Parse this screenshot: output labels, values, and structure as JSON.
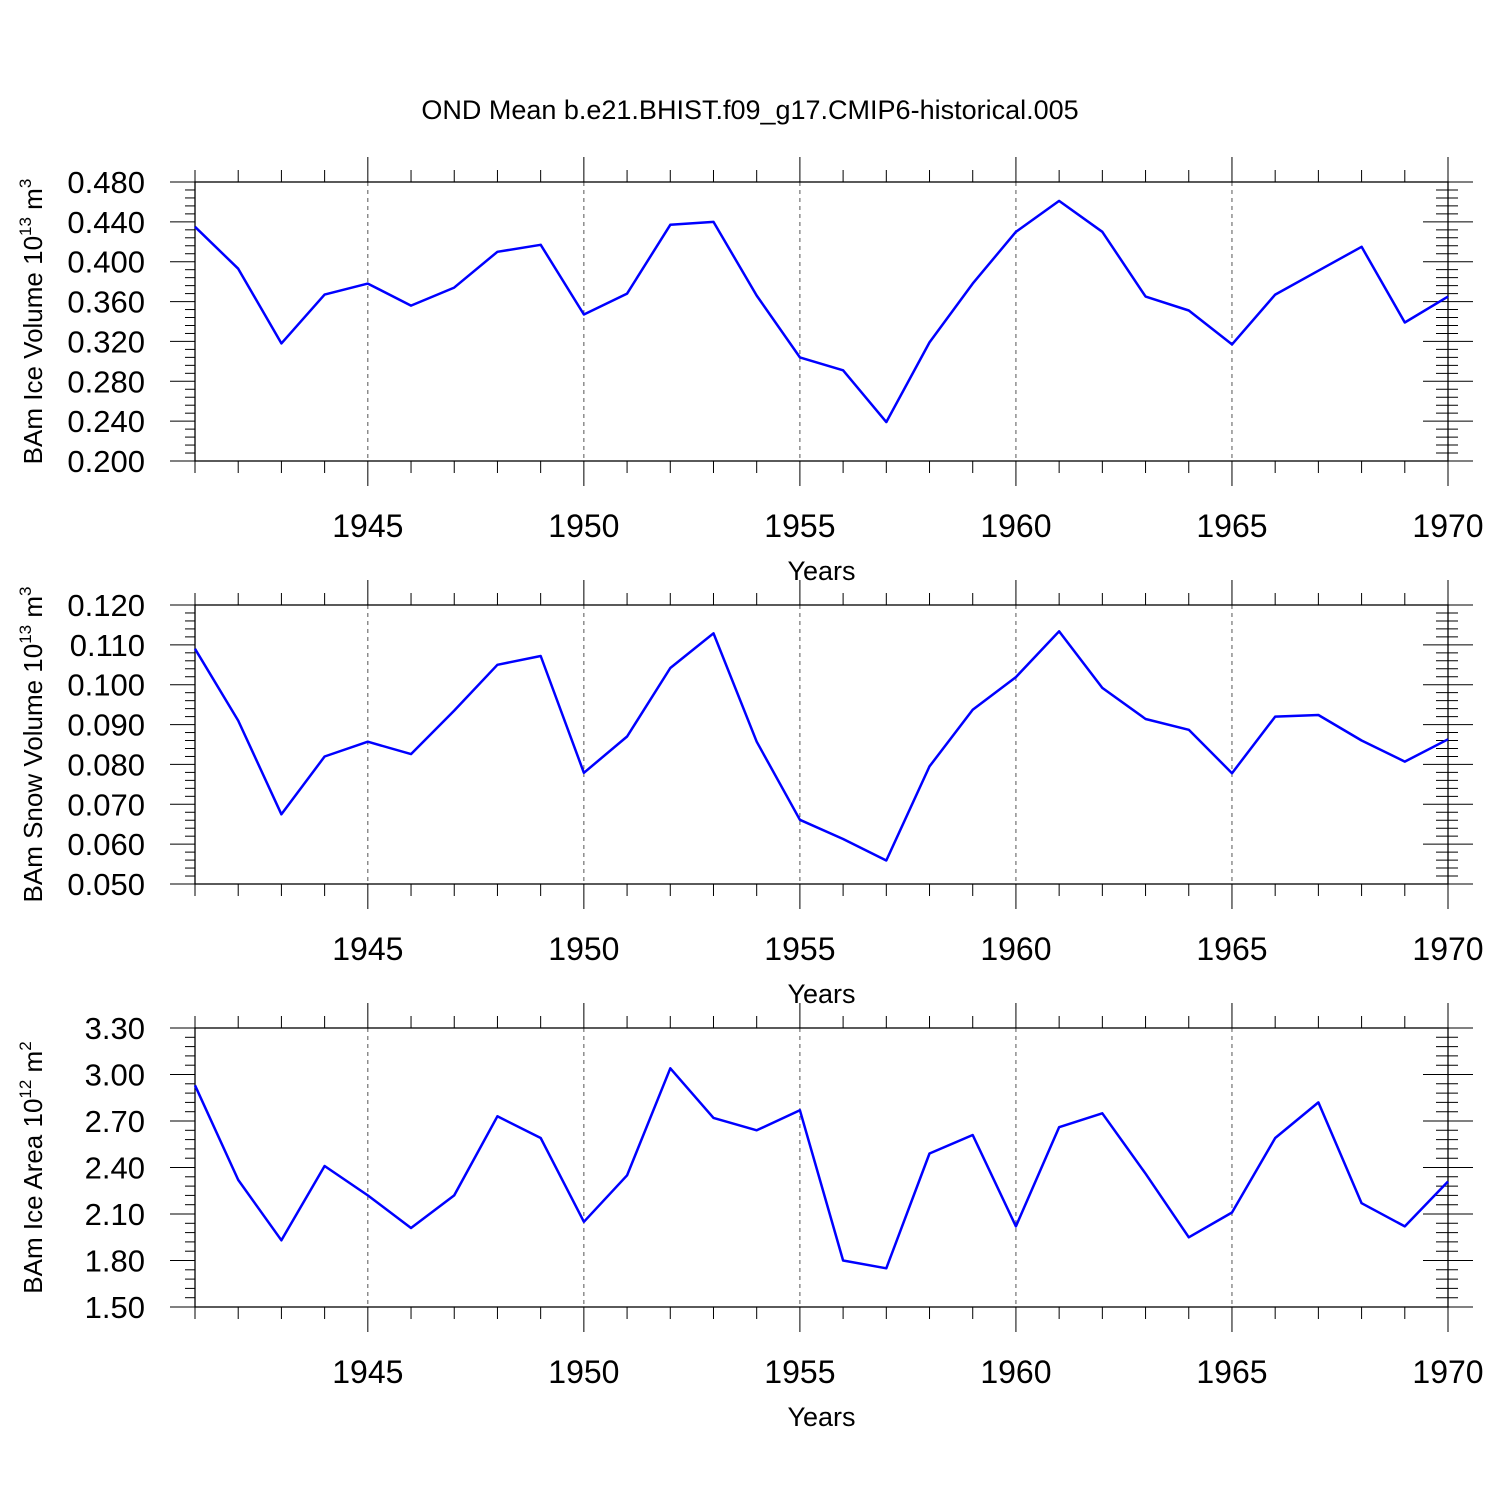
{
  "title": "OND Mean b.e21.BHIST.f09_g17.CMIP6-historical.005",
  "line_color": "#0000ff",
  "chart_data": [
    {
      "type": "line",
      "ylabel": "BAm Ice Volume 10",
      "ylabel_exp": "13",
      "ylabel_unit": " m",
      "ylabel_unit_exp": "3",
      "xlabel": "Years",
      "xlim": [
        1941,
        1970
      ],
      "ylim": [
        0.2,
        0.48
      ],
      "yticks": [
        "0.200",
        "0.240",
        "0.280",
        "0.320",
        "0.360",
        "0.400",
        "0.440",
        "0.480"
      ],
      "xticks": [
        "1945",
        "1950",
        "1955",
        "1960",
        "1965",
        "1970"
      ],
      "x": [
        1941,
        1942,
        1943,
        1944,
        1945,
        1946,
        1947,
        1948,
        1949,
        1950,
        1951,
        1952,
        1953,
        1954,
        1955,
        1956,
        1957,
        1958,
        1959,
        1960,
        1961,
        1962,
        1963,
        1964,
        1965,
        1966,
        1967,
        1968,
        1969,
        1970
      ],
      "y": [
        0.435,
        0.393,
        0.318,
        0.367,
        0.378,
        0.356,
        0.374,
        0.41,
        0.417,
        0.347,
        0.368,
        0.437,
        0.44,
        0.366,
        0.304,
        0.291,
        0.239,
        0.319,
        0.378,
        0.43,
        0.461,
        0.43,
        0.365,
        0.351,
        0.317,
        0.367,
        0.391,
        0.415,
        0.339,
        0.365
      ]
    },
    {
      "type": "line",
      "ylabel": "BAm Snow Volume 10",
      "ylabel_exp": "13",
      "ylabel_unit": " m",
      "ylabel_unit_exp": "3",
      "xlabel": "Years",
      "xlim": [
        1941,
        1970
      ],
      "ylim": [
        0.05,
        0.12
      ],
      "yticks": [
        "0.050",
        "0.060",
        "0.070",
        "0.080",
        "0.090",
        "0.100",
        "0.110",
        "0.120"
      ],
      "xticks": [
        "1945",
        "1950",
        "1955",
        "1960",
        "1965",
        "1970"
      ],
      "x": [
        1941,
        1942,
        1943,
        1944,
        1945,
        1946,
        1947,
        1948,
        1949,
        1950,
        1951,
        1952,
        1953,
        1954,
        1955,
        1956,
        1957,
        1958,
        1959,
        1960,
        1961,
        1962,
        1963,
        1964,
        1965,
        1966,
        1967,
        1968,
        1969,
        1970
      ],
      "y": [
        0.109,
        0.091,
        0.0675,
        0.082,
        0.0857,
        0.0826,
        0.0935,
        0.105,
        0.1072,
        0.0779,
        0.087,
        0.1042,
        0.1129,
        0.0857,
        0.0661,
        0.0613,
        0.0559,
        0.0795,
        0.0937,
        0.1019,
        0.1134,
        0.0992,
        0.0914,
        0.0887,
        0.0778,
        0.092,
        0.0924,
        0.086,
        0.0807,
        0.0863
      ]
    },
    {
      "type": "line",
      "ylabel": "BAm Ice Area 10",
      "ylabel_exp": "12",
      "ylabel_unit": " m",
      "ylabel_unit_exp": "2",
      "xlabel": "Years",
      "xlim": [
        1941,
        1970
      ],
      "ylim": [
        1.5,
        3.3
      ],
      "yticks": [
        "1.50",
        "1.80",
        "2.10",
        "2.40",
        "2.70",
        "3.00",
        "3.30"
      ],
      "xticks": [
        "1945",
        "1950",
        "1955",
        "1960",
        "1965",
        "1970"
      ],
      "x": [
        1941,
        1942,
        1943,
        1944,
        1945,
        1946,
        1947,
        1948,
        1949,
        1950,
        1951,
        1952,
        1953,
        1954,
        1955,
        1956,
        1957,
        1958,
        1959,
        1960,
        1961,
        1962,
        1963,
        1964,
        1965,
        1966,
        1967,
        1968,
        1969,
        1970
      ],
      "y": [
        2.93,
        2.32,
        1.93,
        2.41,
        2.22,
        2.01,
        2.22,
        2.73,
        2.59,
        2.05,
        2.35,
        3.04,
        2.72,
        2.64,
        2.77,
        1.8,
        1.75,
        2.49,
        2.61,
        2.02,
        2.66,
        2.75,
        2.36,
        1.95,
        2.11,
        2.59,
        2.82,
        2.17,
        2.02,
        2.31
      ]
    }
  ]
}
